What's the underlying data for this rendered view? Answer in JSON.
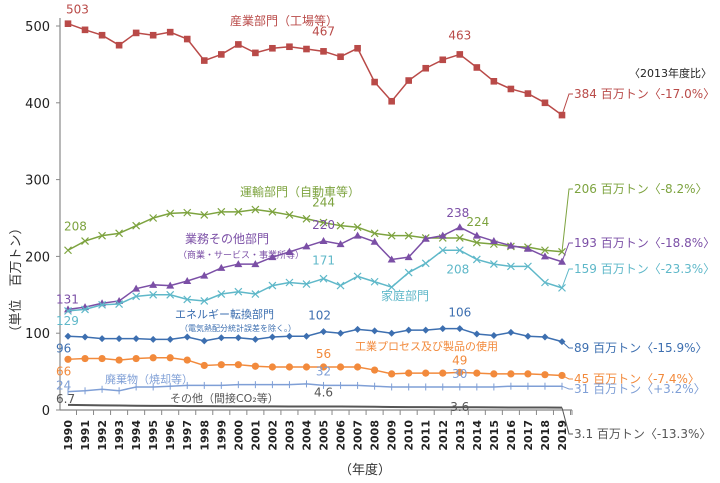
{
  "chart_data": {
    "type": "line",
    "xlabel": "（年度）",
    "ylabel": "（単位　百万トン）",
    "ylim": [
      0,
      510
    ],
    "yticks": [
      0,
      100,
      200,
      300,
      400,
      500
    ],
    "ratio_note": "〈2013年度比〉",
    "x": [
      1990,
      1991,
      1992,
      1993,
      1994,
      1995,
      1996,
      1997,
      1998,
      1999,
      2000,
      2001,
      2002,
      2003,
      2004,
      2005,
      2006,
      2007,
      2008,
      2009,
      2010,
      2011,
      2012,
      2013,
      2014,
      2015,
      2016,
      2017,
      2018,
      2019
    ],
    "series": [
      {
        "name": "産業部門（工場等）",
        "color": "#b94a48",
        "marker": "square",
        "values": [
          503,
          495,
          488,
          475,
          491,
          488,
          492,
          483,
          455,
          463,
          476,
          465,
          471,
          473,
          470,
          467,
          460,
          471,
          427,
          402,
          429,
          445,
          456,
          463,
          446,
          428,
          418,
          412,
          400,
          384
        ],
        "annotations": [
          {
            "year": 1990,
            "label": "503"
          },
          {
            "year": 2005,
            "label": "467"
          },
          {
            "year": 2013,
            "label": "463"
          }
        ],
        "end_label": "384 百万トン〈-17.0%〉"
      },
      {
        "name": "運輸部門（自動車等）",
        "color": "#7da33f",
        "marker": "x",
        "values": [
          208,
          220,
          227,
          230,
          240,
          250,
          256,
          257,
          254,
          258,
          258,
          261,
          258,
          254,
          249,
          244,
          240,
          238,
          230,
          227,
          227,
          224,
          224,
          224,
          218,
          216,
          213,
          212,
          208,
          206
        ],
        "annotations": [
          {
            "year": 1990,
            "label": "208"
          },
          {
            "year": 2005,
            "label": "244"
          },
          {
            "year": 2013,
            "label": "224"
          }
        ],
        "end_label": "206 百万トン〈-8.2%〉"
      },
      {
        "name": "業務その他部門",
        "sub": "（商業・サービス・事業所等）",
        "color": "#7b4fa6",
        "marker": "triangle",
        "values": [
          131,
          134,
          139,
          142,
          158,
          163,
          162,
          168,
          175,
          185,
          190,
          190,
          199,
          206,
          213,
          220,
          216,
          227,
          219,
          196,
          199,
          223,
          227,
          238,
          227,
          220,
          214,
          210,
          200,
          193
        ],
        "annotations": [
          {
            "year": 1990,
            "label": "131"
          },
          {
            "year": 2005,
            "label": "220"
          },
          {
            "year": 2013,
            "label": "238"
          }
        ],
        "end_label": "193 百万トン〈-18.8%〉"
      },
      {
        "name": "家庭部門",
        "color": "#5fb8c9",
        "marker": "x",
        "values": [
          129,
          131,
          137,
          138,
          148,
          150,
          150,
          144,
          142,
          151,
          154,
          151,
          162,
          166,
          164,
          171,
          162,
          174,
          167,
          160,
          179,
          191,
          208,
          208,
          196,
          190,
          187,
          187,
          166,
          159
        ],
        "annotations": [
          {
            "year": 1990,
            "label": "129"
          },
          {
            "year": 2005,
            "label": "171"
          },
          {
            "year": 2013,
            "label": "208"
          }
        ],
        "end_label": "159 百万トン〈-23.3%〉"
      },
      {
        "name": "エネルギー転換部門",
        "sub": "（電気熱配分統計誤差を除く。）",
        "color": "#3d6fb0",
        "marker": "diamond",
        "values": [
          96,
          95,
          93,
          93,
          93,
          92,
          92,
          95,
          90,
          94,
          94,
          92,
          95,
          96,
          96,
          102,
          100,
          105,
          103,
          100,
          104,
          104,
          106,
          106,
          99,
          97,
          101,
          96,
          95,
          89
        ],
        "annotations": [
          {
            "year": 1990,
            "label": "96"
          },
          {
            "year": 2005,
            "label": "102"
          },
          {
            "year": 2013,
            "label": "106"
          }
        ],
        "end_label": "89 百万トン〈-15.9%〉"
      },
      {
        "name": "工業プロセス及び製品の使用",
        "color": "#f28a3c",
        "marker": "circle",
        "values": [
          66,
          67,
          67,
          65,
          67,
          68,
          68,
          65,
          58,
          59,
          59,
          57,
          56,
          56,
          56,
          56,
          56,
          56,
          52,
          47,
          48,
          48,
          48,
          49,
          48,
          47,
          47,
          47,
          46,
          45
        ],
        "annotations": [
          {
            "year": 1990,
            "label": "66"
          },
          {
            "year": 2005,
            "label": "56"
          },
          {
            "year": 2013,
            "label": "49"
          }
        ],
        "end_label": "45 百万トン〈-7.4%〉"
      },
      {
        "name": "廃棄物（焼却等）",
        "color": "#7f9fd6",
        "marker": "plus",
        "values": [
          24,
          25,
          27,
          25,
          30,
          30,
          31,
          32,
          32,
          32,
          33,
          33,
          33,
          33,
          34,
          32,
          32,
          32,
          31,
          30,
          30,
          30,
          30,
          30,
          30,
          30,
          31,
          31,
          31,
          31
        ],
        "annotations": [
          {
            "year": 1990,
            "label": "24"
          },
          {
            "year": 2005,
            "label": "32"
          },
          {
            "year": 2013,
            "label": "30"
          }
        ],
        "end_label": "31 百万トン〈+3.2%〉"
      },
      {
        "name": "その他（間接CO₂等）",
        "color": "#555555",
        "marker": "dash",
        "values": [
          6.7,
          6.3,
          6.0,
          5.8,
          5.6,
          5.4,
          5.3,
          5.1,
          5.0,
          4.9,
          4.8,
          4.7,
          4.7,
          4.6,
          4.6,
          4.6,
          4.5,
          4.4,
          4.2,
          3.9,
          3.8,
          3.7,
          3.6,
          3.6,
          3.5,
          3.4,
          3.3,
          3.3,
          3.2,
          3.1
        ],
        "annotations": [
          {
            "year": 1990,
            "label": "6.7"
          },
          {
            "year": 2005,
            "label": "4.6"
          },
          {
            "year": 2013,
            "label": "3.6"
          }
        ],
        "end_label": "3.1 百万トン〈-13.3%〉"
      }
    ]
  }
}
